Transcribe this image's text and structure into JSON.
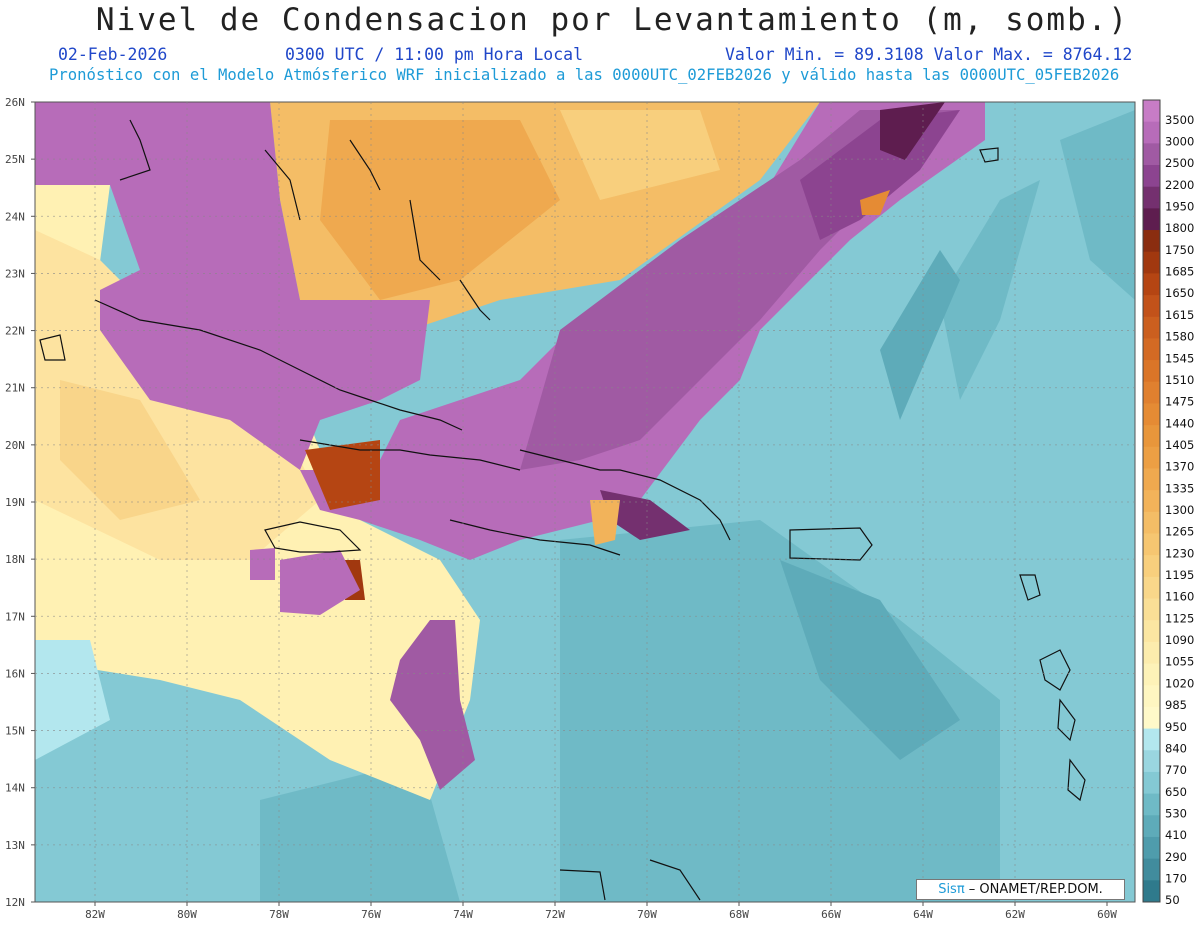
{
  "header": {
    "title": "Nivel de Condensacion por Levantamiento (m, somb.)",
    "date": "02-Feb-2026",
    "time": "0300 UTC / 11:00 pm Hora Local",
    "range": "Valor Min. = 89.3108  Valor Max. = 8764.12",
    "subtitle": "Pronóstico con el Modelo Atmósferico WRF inicializado a las 0000UTC_02FEB2026 y válido hasta las  0000UTC_05FEB2026"
  },
  "credit": {
    "brand": "Sisπ",
    "org": " – ONAMET/REP.DOM."
  },
  "lat_labels": [
    "26N",
    "25N",
    "24N",
    "23N",
    "22N",
    "21N",
    "20N",
    "19N",
    "18N",
    "17N",
    "16N",
    "15N",
    "14N",
    "13N",
    "12N"
  ],
  "lon_labels": [
    "82W",
    "80W",
    "78W",
    "76W",
    "74W",
    "72W",
    "70W",
    "68W",
    "66W",
    "64W",
    "62W",
    "60W"
  ],
  "colorbar": {
    "labels": [
      "3500",
      "3000",
      "2500",
      "2200",
      "1950",
      "1800",
      "1750",
      "1685",
      "1650",
      "1615",
      "1580",
      "1545",
      "1510",
      "1475",
      "1440",
      "1405",
      "1370",
      "1335",
      "1300",
      "1265",
      "1230",
      "1195",
      "1160",
      "1125",
      "1090",
      "1055",
      "1020",
      "985",
      "950",
      "840",
      "770",
      "650",
      "530",
      "410",
      "290",
      "170",
      "50"
    ],
    "colors": [
      "#c77cc6",
      "#b76cb9",
      "#a05aa3",
      "#8c4490",
      "#74306f",
      "#5e1d4f",
      "#8a2d10",
      "#a1380f",
      "#b54513",
      "#c2521a",
      "#cb5f1f",
      "#d36a24",
      "#da7528",
      "#e0802f",
      "#e58b34",
      "#e8963b",
      "#ec9f44",
      "#efa94f",
      "#f2b35a",
      "#f4bd66",
      "#f6c671",
      "#f8cf7d",
      "#f9d78a",
      "#fadf96",
      "#fbe6a2",
      "#fcecad",
      "#fdf2b8",
      "#fef6c1",
      "#fff9c9",
      "#b3e7ee",
      "#9ad6e0",
      "#84c9d4",
      "#6fbac6",
      "#5eabb9",
      "#4f9cac",
      "#418c9d",
      "#2f7a8c"
    ]
  }
}
